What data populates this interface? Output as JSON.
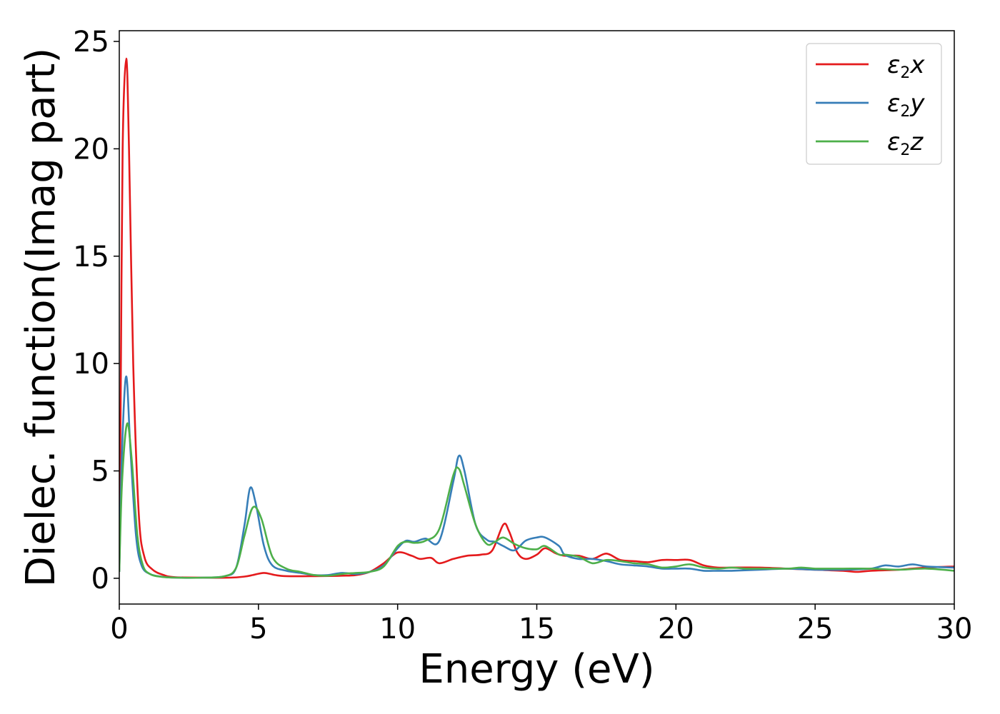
{
  "chart_data": {
    "type": "line",
    "xlabel": "Energy (eV)",
    "ylabel": "Dielec. function(Imag part)",
    "xlim": [
      0,
      30
    ],
    "ylim": [
      -1.2,
      25.5
    ],
    "xticks": [
      0,
      5,
      10,
      15,
      20,
      25,
      30
    ],
    "yticks": [
      0,
      5,
      10,
      15,
      20,
      25
    ],
    "grid": false,
    "legend_position": "top-right",
    "series": [
      {
        "name": "ε₂x",
        "legend": {
          "base": "ε",
          "sub": "2",
          "suffix": "x"
        },
        "color": "#e41a1c",
        "points": [
          [
            0,
            0.5
          ],
          [
            0.05,
            8
          ],
          [
            0.12,
            20
          ],
          [
            0.25,
            24.2
          ],
          [
            0.35,
            20
          ],
          [
            0.5,
            10
          ],
          [
            0.7,
            3
          ],
          [
            0.9,
            1
          ],
          [
            1.2,
            0.4
          ],
          [
            1.6,
            0.15
          ],
          [
            2,
            0.05
          ],
          [
            3,
            0.03
          ],
          [
            4,
            0.03
          ],
          [
            4.5,
            0.08
          ],
          [
            4.8,
            0.15
          ],
          [
            5.2,
            0.25
          ],
          [
            5.6,
            0.15
          ],
          [
            6,
            0.1
          ],
          [
            7,
            0.1
          ],
          [
            8,
            0.12
          ],
          [
            8.5,
            0.15
          ],
          [
            9,
            0.3
          ],
          [
            9.5,
            0.7
          ],
          [
            10,
            1.2
          ],
          [
            10.5,
            1.05
          ],
          [
            10.8,
            0.9
          ],
          [
            11.2,
            0.95
          ],
          [
            11.5,
            0.7
          ],
          [
            12,
            0.9
          ],
          [
            12.5,
            1.05
          ],
          [
            13,
            1.1
          ],
          [
            13.4,
            1.3
          ],
          [
            13.8,
            2.5
          ],
          [
            14,
            2.2
          ],
          [
            14.3,
            1.2
          ],
          [
            14.6,
            0.9
          ],
          [
            15,
            1.1
          ],
          [
            15.3,
            1.4
          ],
          [
            15.7,
            1.15
          ],
          [
            16,
            1.05
          ],
          [
            16.5,
            1.05
          ],
          [
            17,
            0.9
          ],
          [
            17.5,
            1.15
          ],
          [
            18,
            0.85
          ],
          [
            18.5,
            0.8
          ],
          [
            19,
            0.75
          ],
          [
            19.5,
            0.85
          ],
          [
            20,
            0.85
          ],
          [
            20.5,
            0.85
          ],
          [
            21,
            0.6
          ],
          [
            21.5,
            0.5
          ],
          [
            22,
            0.5
          ],
          [
            23,
            0.5
          ],
          [
            24,
            0.45
          ],
          [
            25,
            0.4
          ],
          [
            26,
            0.35
          ],
          [
            26.5,
            0.3
          ],
          [
            27,
            0.35
          ],
          [
            28,
            0.4
          ],
          [
            29,
            0.5
          ],
          [
            30,
            0.55
          ]
        ]
      },
      {
        "name": "ε₂y",
        "legend": {
          "base": "ε",
          "sub": "2",
          "suffix": "y"
        },
        "color": "#377eb8",
        "points": [
          [
            0,
            0.3
          ],
          [
            0.1,
            6
          ],
          [
            0.25,
            9.4
          ],
          [
            0.4,
            6
          ],
          [
            0.6,
            2
          ],
          [
            0.8,
            0.6
          ],
          [
            1.1,
            0.2
          ],
          [
            1.5,
            0.08
          ],
          [
            2,
            0.03
          ],
          [
            3,
            0.03
          ],
          [
            3.8,
            0.1
          ],
          [
            4.2,
            0.5
          ],
          [
            4.5,
            2.5
          ],
          [
            4.7,
            4.2
          ],
          [
            4.9,
            3.5
          ],
          [
            5.2,
            1.5
          ],
          [
            5.5,
            0.6
          ],
          [
            6,
            0.35
          ],
          [
            6.5,
            0.25
          ],
          [
            7,
            0.15
          ],
          [
            7.5,
            0.15
          ],
          [
            8,
            0.25
          ],
          [
            8.5,
            0.2
          ],
          [
            9,
            0.3
          ],
          [
            9.5,
            0.6
          ],
          [
            10,
            1.4
          ],
          [
            10.3,
            1.75
          ],
          [
            10.6,
            1.7
          ],
          [
            11,
            1.85
          ],
          [
            11.5,
            1.75
          ],
          [
            12,
            4.5
          ],
          [
            12.2,
            5.7
          ],
          [
            12.4,
            5
          ],
          [
            12.8,
            2.5
          ],
          [
            13.2,
            1.8
          ],
          [
            13.5,
            1.7
          ],
          [
            13.8,
            1.5
          ],
          [
            14.2,
            1.3
          ],
          [
            14.6,
            1.75
          ],
          [
            15,
            1.9
          ],
          [
            15.3,
            1.9
          ],
          [
            15.8,
            1.5
          ],
          [
            16,
            1.1
          ],
          [
            16.5,
            0.9
          ],
          [
            17,
            0.9
          ],
          [
            17.5,
            0.8
          ],
          [
            18,
            0.65
          ],
          [
            18.5,
            0.6
          ],
          [
            19,
            0.55
          ],
          [
            19.5,
            0.45
          ],
          [
            20,
            0.45
          ],
          [
            20.5,
            0.45
          ],
          [
            21,
            0.35
          ],
          [
            21.5,
            0.35
          ],
          [
            22,
            0.35
          ],
          [
            23,
            0.4
          ],
          [
            24,
            0.45
          ],
          [
            25,
            0.4
          ],
          [
            26,
            0.4
          ],
          [
            27,
            0.45
          ],
          [
            27.5,
            0.6
          ],
          [
            28,
            0.55
          ],
          [
            28.5,
            0.65
          ],
          [
            29,
            0.55
          ],
          [
            30,
            0.5
          ]
        ]
      },
      {
        "name": "ε₂z",
        "legend": {
          "base": "ε",
          "sub": "2",
          "suffix": "z"
        },
        "color": "#4daf4a",
        "points": [
          [
            0,
            0.3
          ],
          [
            0.1,
            4.5
          ],
          [
            0.28,
            7.2
          ],
          [
            0.45,
            5.5
          ],
          [
            0.65,
            2
          ],
          [
            0.85,
            0.6
          ],
          [
            1.1,
            0.2
          ],
          [
            1.5,
            0.07
          ],
          [
            2,
            0.03
          ],
          [
            3,
            0.03
          ],
          [
            3.8,
            0.1
          ],
          [
            4.2,
            0.5
          ],
          [
            4.5,
            2
          ],
          [
            4.8,
            3.3
          ],
          [
            5.1,
            2.8
          ],
          [
            5.5,
            1
          ],
          [
            6,
            0.45
          ],
          [
            6.5,
            0.3
          ],
          [
            7,
            0.15
          ],
          [
            7.5,
            0.12
          ],
          [
            8,
            0.2
          ],
          [
            8.5,
            0.25
          ],
          [
            9,
            0.3
          ],
          [
            9.5,
            0.55
          ],
          [
            10,
            1.5
          ],
          [
            10.3,
            1.7
          ],
          [
            10.6,
            1.65
          ],
          [
            11,
            1.75
          ],
          [
            11.5,
            2.3
          ],
          [
            12,
            4.8
          ],
          [
            12.2,
            5.1
          ],
          [
            12.4,
            4.3
          ],
          [
            12.8,
            2.5
          ],
          [
            13.2,
            1.6
          ],
          [
            13.5,
            1.7
          ],
          [
            13.8,
            1.9
          ],
          [
            14.2,
            1.6
          ],
          [
            14.6,
            1.4
          ],
          [
            15,
            1.35
          ],
          [
            15.3,
            1.5
          ],
          [
            15.8,
            1.1
          ],
          [
            16,
            1.1
          ],
          [
            16.5,
            1
          ],
          [
            17,
            0.7
          ],
          [
            17.5,
            0.85
          ],
          [
            18,
            0.8
          ],
          [
            18.5,
            0.7
          ],
          [
            19,
            0.65
          ],
          [
            19.5,
            0.5
          ],
          [
            20,
            0.55
          ],
          [
            20.5,
            0.65
          ],
          [
            21,
            0.5
          ],
          [
            21.5,
            0.45
          ],
          [
            22,
            0.5
          ],
          [
            22.5,
            0.45
          ],
          [
            23,
            0.45
          ],
          [
            24,
            0.45
          ],
          [
            24.5,
            0.5
          ],
          [
            25,
            0.45
          ],
          [
            25.5,
            0.45
          ],
          [
            26,
            0.45
          ],
          [
            27,
            0.45
          ],
          [
            28,
            0.4
          ],
          [
            29,
            0.45
          ],
          [
            30,
            0.35
          ]
        ]
      }
    ]
  }
}
